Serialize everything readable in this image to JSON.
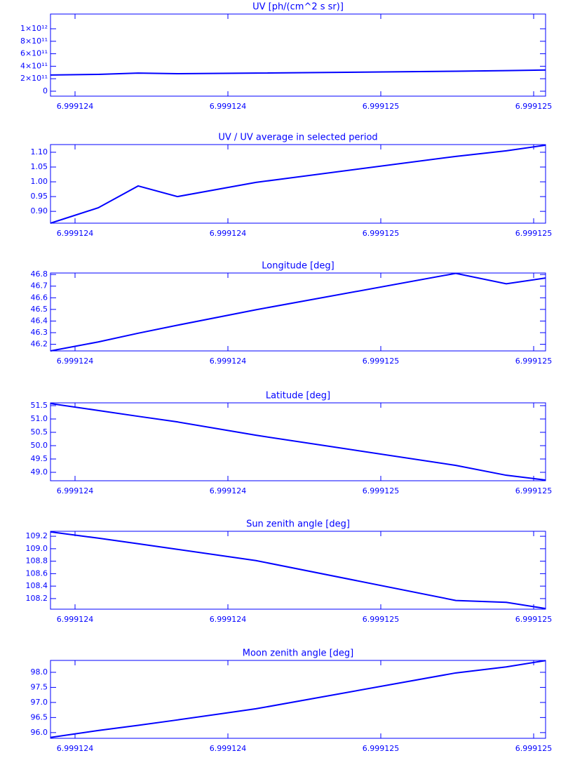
{
  "chart_data": [
    {
      "type": "line",
      "title": "UV [ph/(cm^2 s sr)]",
      "color": "#0000ff",
      "x": [
        6.9991239358,
        6.9991240606,
        6.9991241651,
        6.9991242679,
        6.9991244734,
        6.9991249963,
        6.9991251284,
        6.9991252312
      ],
      "values": [
        260000000000,
        270000000000,
        290000000000,
        280000000000,
        290000000000,
        320000000000,
        330000000000,
        340000000000
      ],
      "xlim": [
        6.9991239358,
        6.9991252312
      ],
      "xticks": [
        {
          "value": 6.999124,
          "label": "6.999124"
        },
        {
          "value": 6.9991244,
          "label": "6.999124"
        },
        {
          "value": 6.9991248,
          "label": "6.999125"
        },
        {
          "value": 6.9991252,
          "label": "6.999125"
        }
      ],
      "ylim": [
        -79000000000,
        1236000000000
      ],
      "yticks": [
        0,
        {
          "value": 200000000000,
          "label": "2×10¹¹"
        },
        {
          "value": 400000000000,
          "label": "4×10¹¹"
        },
        {
          "value": 600000000000,
          "label": "6×10¹¹"
        },
        {
          "value": 800000000000,
          "label": "8×10¹¹"
        },
        {
          "value": 1000000000000,
          "label": "1×10¹²"
        }
      ]
    },
    {
      "type": "line",
      "title": "UV / UV average in selected period",
      "color": "#0000ff",
      "x": [
        6.9991239358,
        6.9991240606,
        6.9991241651,
        6.9991242679,
        6.9991244734,
        6.9991249963,
        6.9991251284,
        6.9991252312
      ],
      "values": [
        0.86,
        0.912,
        0.986,
        0.95,
        0.998,
        1.086,
        1.105,
        1.124
      ],
      "xlim": [
        6.9991239358,
        6.9991252312
      ],
      "xticks": [
        {
          "value": 6.999124,
          "label": "6.999124"
        },
        {
          "value": 6.9991244,
          "label": "6.999124"
        },
        {
          "value": 6.9991248,
          "label": "6.999125"
        },
        {
          "value": 6.9991252,
          "label": "6.999125"
        }
      ],
      "ylim": [
        0.86,
        1.126
      ],
      "yticks": [
        {
          "value": 0.9,
          "label": "0.90"
        },
        {
          "value": 0.95,
          "label": "0.95"
        },
        {
          "value": 1.0,
          "label": "1.00"
        },
        {
          "value": 1.05,
          "label": "1.05"
        },
        {
          "value": 1.1,
          "label": "1.10"
        }
      ]
    },
    {
      "type": "line",
      "title": "Longitude [deg]",
      "color": "#0000ff",
      "x": [
        6.9991239358,
        6.9991240606,
        6.9991241651,
        6.9991242679,
        6.9991244734,
        6.9991249963,
        6.9991251284,
        6.9991252312
      ],
      "values": [
        46.143,
        46.22,
        46.295,
        46.364,
        46.497,
        46.81,
        46.72,
        46.77
      ],
      "xlim": [
        6.9991239358,
        6.9991252312
      ],
      "xticks": [
        {
          "value": 6.999124,
          "label": "6.999124"
        },
        {
          "value": 6.9991244,
          "label": "6.999124"
        },
        {
          "value": 6.9991248,
          "label": "6.999125"
        },
        {
          "value": 6.9991252,
          "label": "6.999125"
        }
      ],
      "ylim": [
        46.143,
        46.813
      ],
      "yticks": [
        46.2,
        46.3,
        46.4,
        46.5,
        46.6,
        46.7,
        46.8
      ]
    },
    {
      "type": "line",
      "title": "Latitude [deg]",
      "color": "#0000ff",
      "x": [
        6.9991239358,
        6.9991240606,
        6.9991241651,
        6.9991242679,
        6.9991244734,
        6.9991249963,
        6.9991251284,
        6.9991252312
      ],
      "values": [
        51.58,
        51.32,
        51.1,
        50.89,
        50.39,
        49.26,
        48.89,
        48.71
      ],
      "xlim": [
        6.9991239358,
        6.9991252312
      ],
      "xticks": [
        {
          "value": 6.999124,
          "label": "6.999124"
        },
        {
          "value": 6.9991244,
          "label": "6.999124"
        },
        {
          "value": 6.9991248,
          "label": "6.999125"
        },
        {
          "value": 6.9991252,
          "label": "6.999125"
        }
      ],
      "ylim": [
        48.684,
        51.605
      ],
      "yticks": [
        {
          "value": 49,
          "label": "49.0"
        },
        49.5,
        {
          "value": 50,
          "label": "50.0"
        },
        50.5,
        {
          "value": 51,
          "label": "51.0"
        },
        51.5
      ]
    },
    {
      "type": "line",
      "title": "Sun zenith angle [deg]",
      "color": "#0000ff",
      "x": [
        6.9991239358,
        6.9991240606,
        6.9991241651,
        6.9991242679,
        6.9991244734,
        6.9991249963,
        6.9991251284,
        6.9991252312
      ],
      "values": [
        109.27,
        109.17,
        109.08,
        108.99,
        108.81,
        108.17,
        108.14,
        108.04
      ],
      "xlim": [
        6.9991239358,
        6.9991252312
      ],
      "xticks": [
        {
          "value": 6.999124,
          "label": "6.999124"
        },
        {
          "value": 6.9991244,
          "label": "6.999124"
        },
        {
          "value": 6.9991248,
          "label": "6.999125"
        },
        {
          "value": 6.9991252,
          "label": "6.999125"
        }
      ],
      "ylim": [
        108.03,
        109.28
      ],
      "yticks": [
        108.2,
        108.4,
        108.6,
        108.8,
        {
          "value": 109,
          "label": "109.0"
        },
        109.2
      ]
    },
    {
      "type": "line",
      "title": "Moon zenith angle [deg]",
      "color": "#0000ff",
      "x": [
        6.9991239358,
        6.9991240606,
        6.9991241651,
        6.9991242679,
        6.9991244734,
        6.9991249963,
        6.9991251284,
        6.9991252312
      ],
      "values": [
        95.84,
        96.07,
        96.24,
        96.42,
        96.79,
        97.98,
        98.18,
        98.39
      ],
      "xlim": [
        6.9991239358,
        6.9991252312
      ],
      "xticks": [
        {
          "value": 6.999124,
          "label": "6.999124"
        },
        {
          "value": 6.9991244,
          "label": "6.999124"
        },
        {
          "value": 6.9991248,
          "label": "6.999125"
        },
        {
          "value": 6.9991252,
          "label": "6.999125"
        }
      ],
      "ylim": [
        95.81,
        98.395
      ],
      "yticks": [
        {
          "value": 96,
          "label": "96.0"
        },
        96.5,
        {
          "value": 97,
          "label": "97.0"
        },
        97.5,
        {
          "value": 98,
          "label": "98.0"
        }
      ]
    }
  ]
}
